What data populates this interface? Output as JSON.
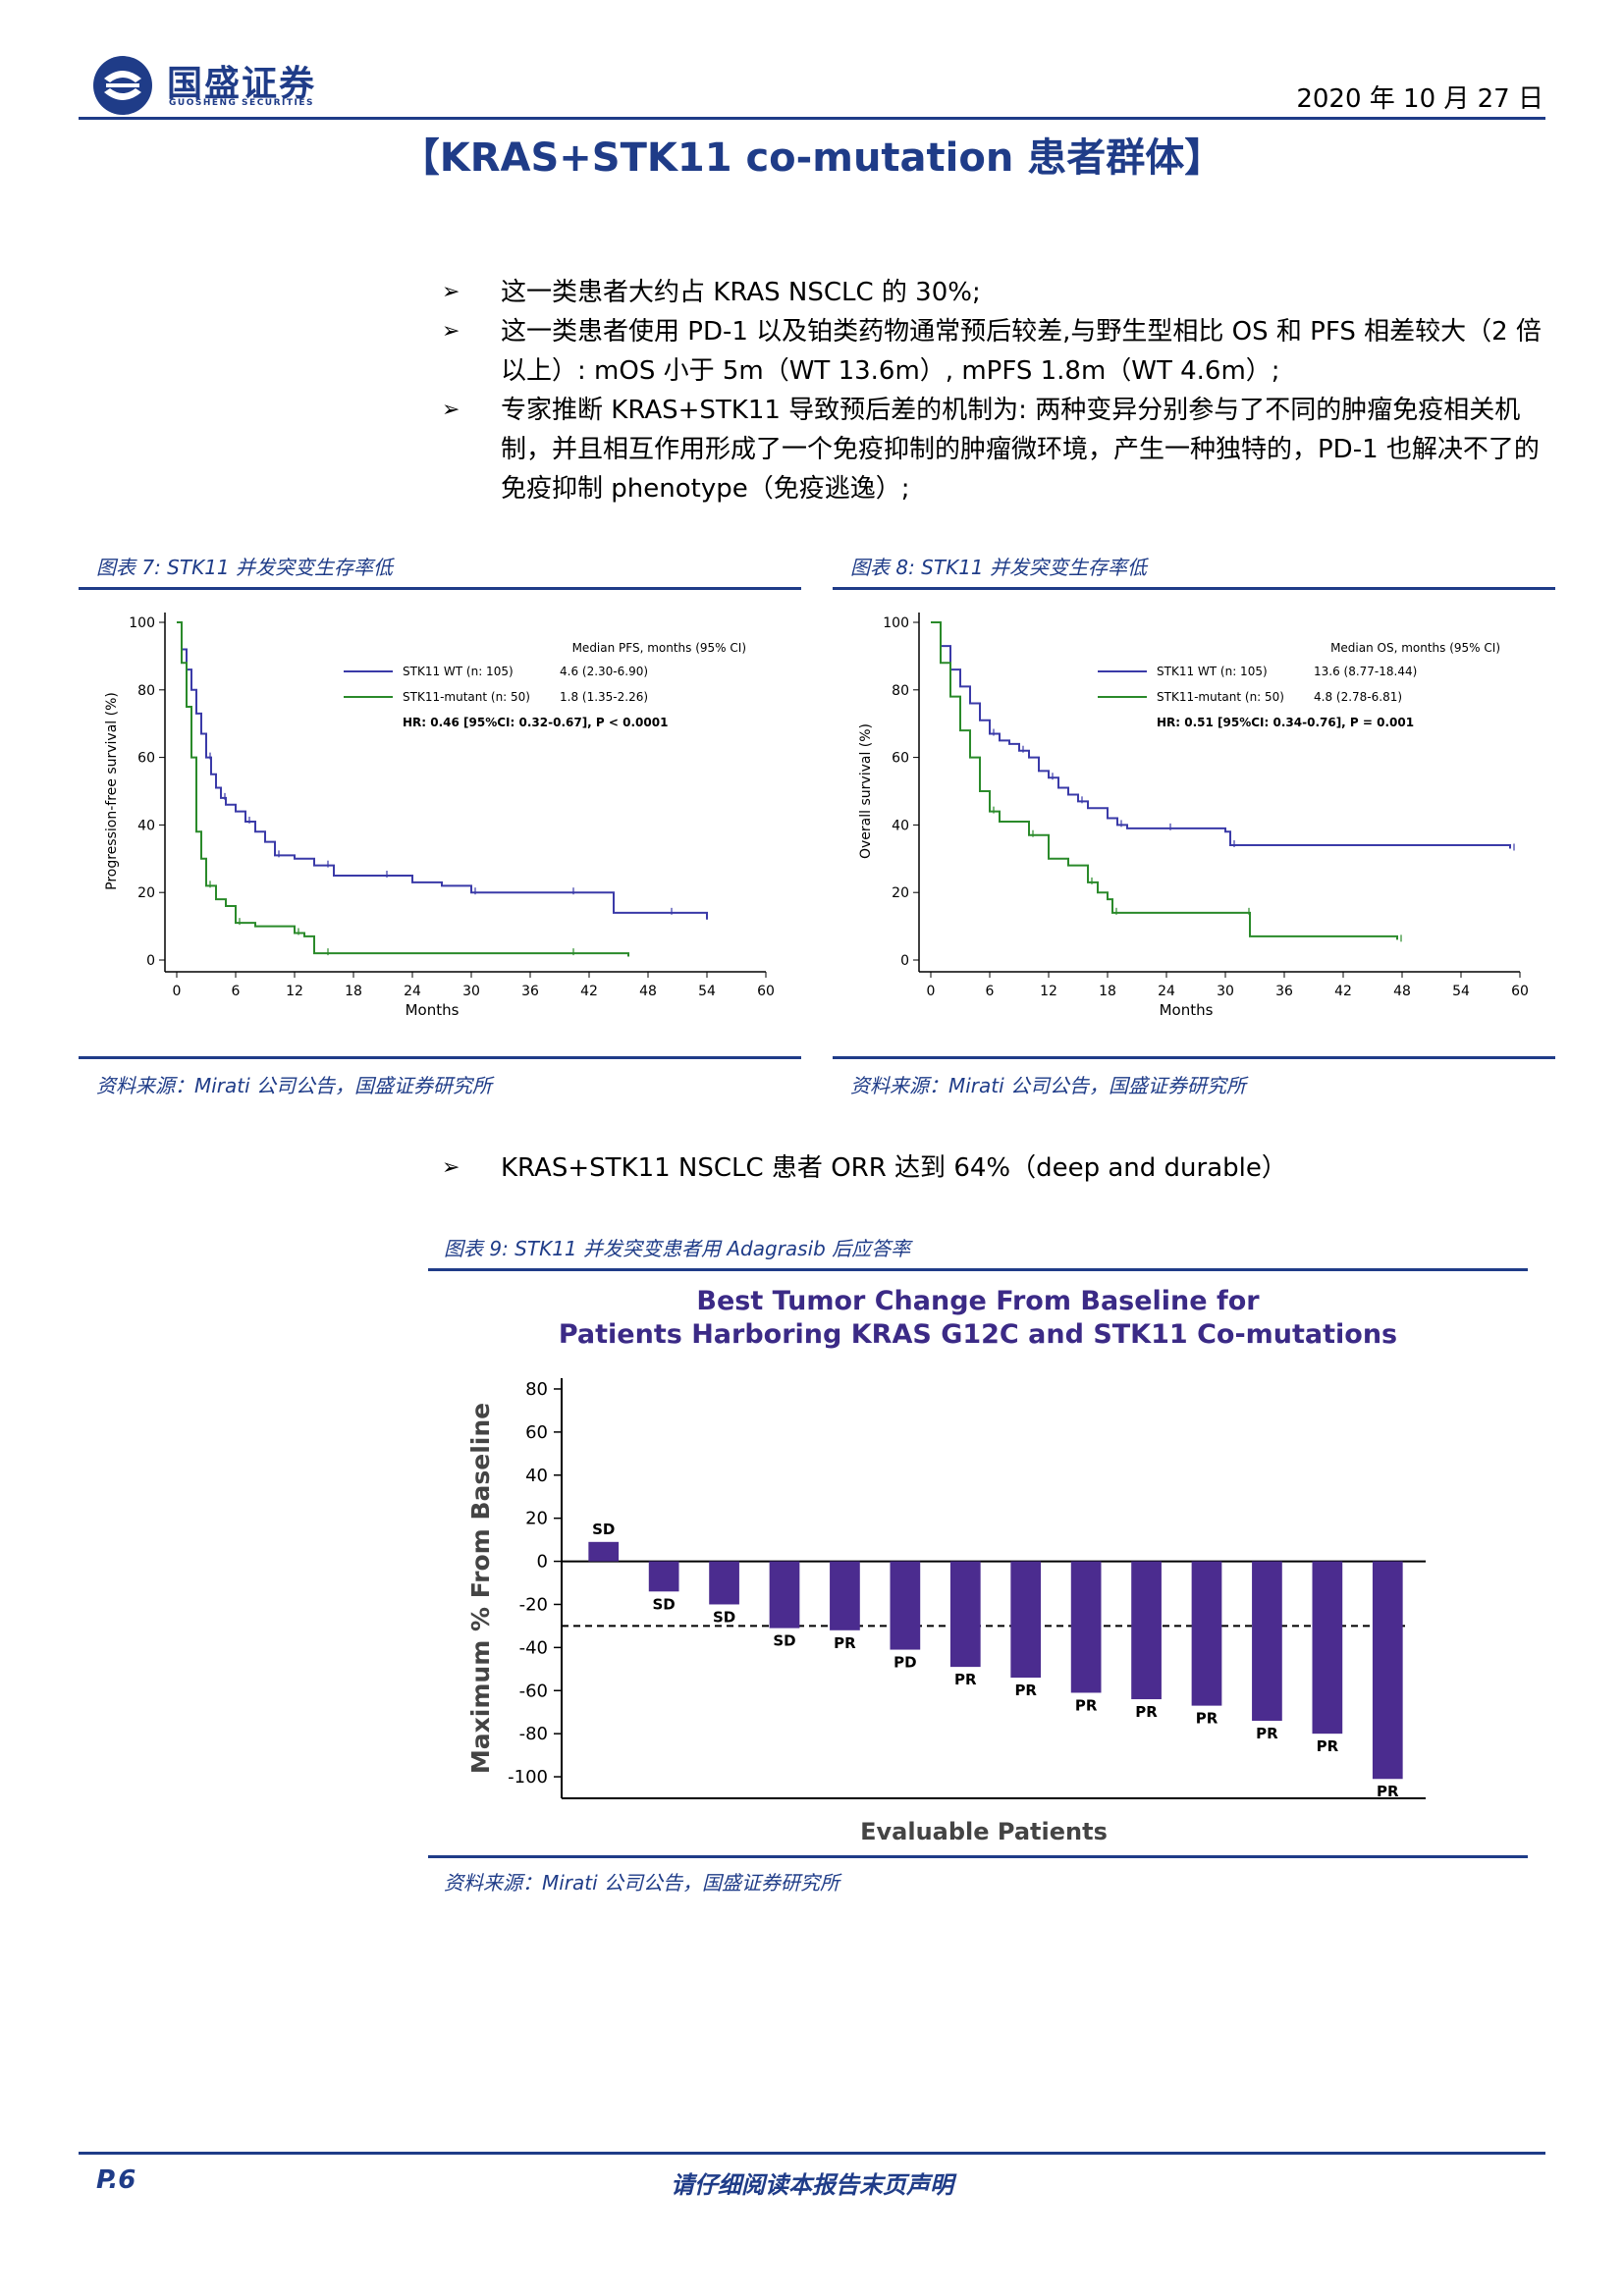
{
  "header": {
    "logo_cn": "国盛证券",
    "logo_en": "GUOSHENG SECURITIES",
    "date": "2020 年 10 月 27 日"
  },
  "title": "【KRAS+STK11 co-mutation 患者群体】",
  "bullets": [
    "这一类患者大约占 KRAS NSCLC 的 30%;",
    "这一类患者使用 PD-1 以及铂类药物通常预后较差,与野生型相比 OS 和 PFS 相差较大（2 倍以上）: mOS 小于 5m（WT 13.6m）, mPFS 1.8m（WT 4.6m）;",
    "专家推断 KRAS+STK11 导致预后差的机制为: 两种变异分别参与了不同的肿瘤免疫相关机制，并且相互作用形成了一个免疫抑制的肿瘤微环境，产生一种独特的，PD-1 也解决不了的免疫抑制 phenotype（免疫逃逸）;"
  ],
  "bullet_mark": "➢",
  "bullet4": "KRAS+STK11 NSCLC 患者 ORR 达到 64%（deep and durable）",
  "fig7": {
    "caption": "图表 7:  STK11 并发突变生存率低",
    "source": "资料来源：Mirati 公司公告，国盛证券研究所"
  },
  "fig8": {
    "caption": "图表 8:  STK11 并发突变生存率低",
    "source": "资料来源：Mirati 公司公告，国盛证券研究所"
  },
  "fig9": {
    "caption": "图表 9:  STK11 并发突变患者用 Adagrasib 后应答率",
    "source": "资料来源：Mirati 公司公告，国盛证券研究所"
  },
  "footer": {
    "page": "P.6",
    "notice": "请仔细阅读本报告末页声明"
  },
  "colors": {
    "brand": "#1f3c88",
    "wt": "#3a3aa8",
    "mutant": "#2a8a2a",
    "bar": "#4b2c8f"
  },
  "chart_data": [
    {
      "type": "line",
      "ylabel": "Progression-free survival (%)",
      "xlabel": "Months",
      "xlim": [
        0,
        60
      ],
      "ylim": [
        0,
        100
      ],
      "xticks": [
        0,
        6,
        12,
        18,
        24,
        30,
        36,
        42,
        48,
        54,
        60
      ],
      "yticks": [
        0,
        20,
        40,
        60,
        80,
        100
      ],
      "legend_title": "Median PFS, months (95% CI)",
      "series": [
        {
          "name": "STK11 WT (n: 105)",
          "median": "4.6 (2.30-6.90)",
          "color": "#3a3aa8",
          "x": [
            0,
            0.5,
            1,
            1.5,
            2,
            2.5,
            3,
            3.5,
            4,
            4.5,
            5,
            6,
            7,
            8,
            9,
            10,
            12,
            14,
            15,
            16,
            18,
            21,
            24,
            27,
            30,
            33,
            36,
            40,
            44,
            44.5,
            50,
            54
          ],
          "y": [
            100,
            92,
            86,
            80,
            73,
            67,
            60,
            55,
            51,
            48,
            46,
            44,
            41,
            38,
            35,
            31,
            30,
            28,
            28,
            25,
            25,
            25,
            23,
            22,
            20,
            20,
            20,
            20,
            20,
            14,
            14,
            12
          ]
        },
        {
          "name": "STK11-mutant (n: 50)",
          "median": "1.8 (1.35-2.26)",
          "color": "#2a8a2a",
          "x": [
            0,
            0.5,
            1,
            1.5,
            2,
            2.5,
            3,
            4,
            5,
            6,
            8,
            10,
            12,
            13,
            14,
            15,
            20,
            30,
            40,
            46
          ],
          "y": [
            100,
            88,
            75,
            60,
            38,
            30,
            22,
            18,
            16,
            11,
            10,
            10,
            8,
            7,
            2,
            2,
            2,
            2,
            2,
            1
          ]
        }
      ],
      "annotation": "HR: 0.46 [95%CI: 0.32-0.67], P < 0.0001"
    },
    {
      "type": "line",
      "ylabel": "Overall survival (%)",
      "xlabel": "Months",
      "xlim": [
        0,
        60
      ],
      "ylim": [
        0,
        100
      ],
      "xticks": [
        0,
        6,
        12,
        18,
        24,
        30,
        36,
        42,
        48,
        54,
        60
      ],
      "yticks": [
        0,
        20,
        40,
        60,
        80,
        100
      ],
      "legend_title": "Median OS, months (95% CI)",
      "series": [
        {
          "name": "STK11 WT (n: 105)",
          "median": "13.6 (8.77-18.44)",
          "color": "#3a3aa8",
          "x": [
            0,
            1,
            2,
            3,
            4,
            5,
            6,
            7,
            8,
            9,
            10,
            11,
            12,
            13,
            14,
            15,
            16,
            18,
            19,
            20,
            22,
            24,
            27,
            30,
            30.5,
            40,
            50,
            59
          ],
          "y": [
            100,
            93,
            86,
            81,
            76,
            71,
            67,
            65,
            64,
            62,
            60,
            56,
            54,
            51,
            49,
            47,
            45,
            42,
            40,
            39,
            39,
            39,
            39,
            38,
            34,
            34,
            34,
            33
          ]
        },
        {
          "name": "STK11-mutant (n: 50)",
          "median": "4.8 (2.78-6.81)",
          "color": "#2a8a2a",
          "x": [
            0,
            1,
            2,
            3,
            4,
            5,
            6,
            7,
            8,
            10,
            12,
            14,
            16,
            17,
            18,
            18.5,
            24,
            30,
            32,
            32.5,
            40,
            47.5
          ],
          "y": [
            100,
            88,
            78,
            68,
            60,
            50,
            44,
            41,
            41,
            37,
            30,
            28,
            23,
            20,
            18,
            14,
            14,
            14,
            14,
            7,
            7,
            6
          ]
        }
      ],
      "annotation": "HR: 0.51 [95%CI: 0.34-0.76], P = 0.001"
    },
    {
      "type": "bar",
      "title": "Best Tumor Change From Baseline for Patients Harboring KRAS G12C and STK11 Co-mutations",
      "title_lines": [
        "Best Tumor Change From Baseline for",
        "Patients Harboring KRAS G12C and STK11 Co-mutations"
      ],
      "xlabel": "Evaluable Patients",
      "ylabel": "Maximum % From Baseline",
      "ylim": [
        -110,
        85
      ],
      "yticks": [
        80,
        60,
        40,
        20,
        0,
        -20,
        -40,
        -60,
        -80,
        -100
      ],
      "reference_line": -30,
      "values": [
        9,
        -14,
        -20,
        -31,
        -32,
        -41,
        -49,
        -54,
        -61,
        -64,
        -67,
        -74,
        -80,
        -101
      ],
      "labels": [
        "SD",
        "SD",
        "SD",
        "SD",
        "PR",
        "PD",
        "PR",
        "PR",
        "PR",
        "PR",
        "PR",
        "PR",
        "PR",
        "PR"
      ]
    }
  ]
}
